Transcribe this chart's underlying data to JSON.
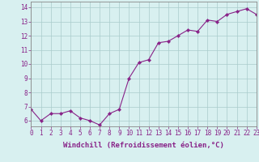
{
  "x": [
    0,
    1,
    2,
    3,
    4,
    5,
    6,
    7,
    8,
    9,
    10,
    11,
    12,
    13,
    14,
    15,
    16,
    17,
    18,
    19,
    20,
    21,
    22,
    23
  ],
  "y": [
    6.8,
    6.0,
    6.5,
    6.5,
    6.7,
    6.2,
    6.0,
    5.7,
    6.5,
    6.8,
    9.0,
    10.1,
    10.3,
    11.5,
    11.6,
    12.0,
    12.4,
    12.3,
    13.1,
    13.0,
    13.5,
    13.7,
    13.9,
    13.5
  ],
  "line_color": "#882288",
  "marker": "D",
  "marker_size": 2.2,
  "bg_color": "#d8f0f0",
  "grid_color": "#aacccc",
  "xlabel": "Windchill (Refroidissement éolien,°C)",
  "xlim": [
    0,
    23
  ],
  "ylim": [
    5.6,
    14.4
  ],
  "yticks": [
    6,
    7,
    8,
    9,
    10,
    11,
    12,
    13,
    14
  ],
  "xticks": [
    0,
    1,
    2,
    3,
    4,
    5,
    6,
    7,
    8,
    9,
    10,
    11,
    12,
    13,
    14,
    15,
    16,
    17,
    18,
    19,
    20,
    21,
    22,
    23
  ],
  "tick_label_fontsize": 5.5,
  "xlabel_fontsize": 6.5,
  "xlabel_color": "#882288",
  "tick_color": "#882288",
  "axis_color": "#882288",
  "spine_color": "#888888"
}
